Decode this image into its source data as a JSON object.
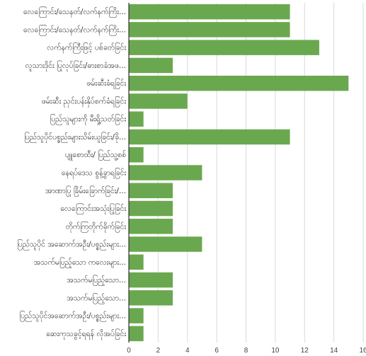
{
  "chart_data": {
    "type": "bar",
    "orientation": "horizontal",
    "categories": [
      "လေကြောင်း/သေနတ်/လက်နက်ကြိး...",
      "လေကြောင်း/သေနတ်/လက်နက်ကြိး...",
      "လက်နက်ကြီးဖြင့် ပစ်ခတ်ခြင်း",
      "လူသားဒိုင်း ပြုလုပ်ခြင်း/ဓားစာခံအဖ...",
      "ဖမ်းဆီးခံရခြင်း",
      "ဖမ်းဆီး ညှင်းပန်းနှိပ်စက်ခံရခြင်း",
      "ပြည်သူများကို မီးရှို့သတ်ခြင်း",
      "ပြည်သူပိုင်ပစ္စည်းများသိမ်းယူခြင်း/ခို...",
      "ပျူစောထီး/ ပြည်သူ့စစ်",
      "နေရပ်ဒေသ စွန့်ခွာရခြင်း",
      "အာဏာပြု ခြိမ်းခြောက်ခြင်း/...",
      "လေကြောင်းအသုံးပြုခြင်း",
      "တိုက်ကြတိုက်ခိုက်ခြင်း",
      "ပြည်သူပိုင် အဆောက်အဦး/ပစ္စည်းများ...",
      "အသက်မပြည့်သော ကလေးများ...",
      "အသက်မပြည့်သော...",
      "အသက်မပြည့်သော...",
      "ပြည်သူပိုင်အဆောက်အဦး/ပစ္စည်းများ...",
      "ဆေးကုသခွင့်ရရန် လိုအပ်ခြင်း"
    ],
    "values": [
      11,
      11,
      13,
      3,
      15,
      4,
      1,
      11,
      1,
      5,
      3,
      3,
      3,
      5,
      1,
      3,
      3,
      1,
      1
    ],
    "xlim": [
      0,
      16
    ],
    "xticks": [
      "0",
      "2",
      "4",
      "6",
      "8",
      "10",
      "12",
      "14",
      "16"
    ],
    "grid": true,
    "colors": {
      "bar": "#6aa84f"
    }
  }
}
